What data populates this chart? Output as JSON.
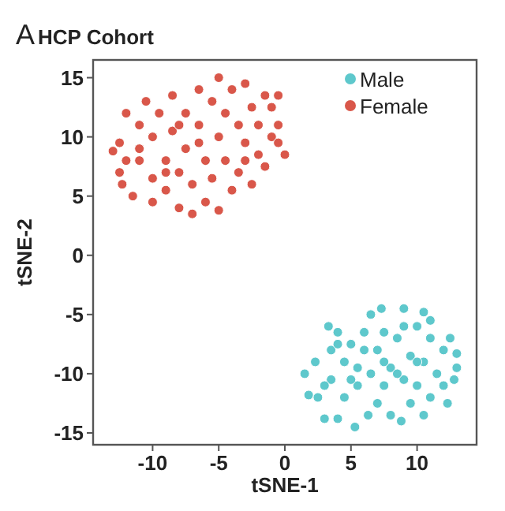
{
  "chart_data": {
    "type": "scatter",
    "title": "HCP Cohort",
    "annotations": [
      "A"
    ],
    "xlabel": "tSNE-1",
    "ylabel": "tSNE-2",
    "xlim": [
      -14.5,
      14.5
    ],
    "ylim": [
      -16,
      16.5
    ],
    "xticks": [
      -10,
      -5,
      0,
      5,
      10
    ],
    "yticks": [
      -15,
      -10,
      -5,
      0,
      5,
      10,
      15
    ],
    "grid": false,
    "legend": "top right",
    "marker": "circle",
    "series": [
      {
        "name": "Male",
        "color": "#5ec8cc",
        "x": [
          1.5,
          1.8,
          2.3,
          2.5,
          3,
          3.3,
          3.5,
          3.5,
          4,
          4,
          4.5,
          4.5,
          5,
          5.3,
          5.5,
          5.5,
          6,
          6.3,
          6.5,
          6.5,
          7,
          7,
          7.3,
          7.5,
          7.5,
          8,
          8,
          8.5,
          8.8,
          9,
          9,
          9.5,
          9.5,
          10,
          10,
          10.5,
          10.5,
          10.5,
          11,
          11,
          11.5,
          12,
          12,
          12.3,
          12.5,
          13,
          13,
          12.8,
          3,
          6,
          8.5,
          5,
          10,
          7.5,
          4,
          11,
          9
        ],
        "values": [
          -10,
          -11.8,
          -9,
          -12,
          -13.8,
          -6,
          -8,
          -10.5,
          -13.8,
          -6.5,
          -9,
          -12,
          -7.5,
          -14.5,
          -11,
          -9.5,
          -6.5,
          -13.5,
          -5,
          -10,
          -8,
          -12.5,
          -4.5,
          -6.5,
          -11,
          -9.5,
          -13.5,
          -7,
          -14,
          -4.5,
          -10.5,
          -8.5,
          -12.5,
          -6,
          -11,
          -4.8,
          -9,
          -13.5,
          -7,
          -12,
          -10,
          -8,
          -11,
          -12.5,
          -7,
          -9.5,
          -8.3,
          -10.5,
          -11,
          -8,
          -10,
          -10.5,
          -9,
          -9,
          -7.5,
          -5.5,
          -6
        ]
      },
      {
        "name": "Female",
        "color": "#d9574a",
        "x": [
          -13,
          -12.5,
          -12.5,
          -12.3,
          -12,
          -11.5,
          -11,
          -11,
          -10.5,
          -10,
          -10,
          -10,
          -9.5,
          -9,
          -9,
          -8.5,
          -8.5,
          -8,
          -8,
          -7.5,
          -7.5,
          -7,
          -7,
          -6.5,
          -6.5,
          -6,
          -6,
          -5.5,
          -5.5,
          -5,
          -5,
          -5,
          -4.5,
          -4.5,
          -4,
          -4,
          -3.5,
          -3.5,
          -3,
          -3,
          -2.5,
          -2.5,
          -2,
          -2,
          -1.5,
          -1.5,
          -1,
          -1,
          -0.5,
          -0.5,
          0,
          -0.5,
          -8,
          -11,
          -6.5,
          -3,
          -9,
          -12
        ],
        "values": [
          8.8,
          9.5,
          7,
          6,
          12,
          5,
          11,
          8,
          13,
          10,
          6.5,
          4.5,
          12,
          8,
          5.5,
          13.5,
          10.5,
          4,
          7,
          12,
          9,
          3.5,
          6,
          14,
          11,
          8,
          4.5,
          13,
          6.5,
          15,
          10,
          3.8,
          12,
          8,
          5.5,
          14,
          11,
          7,
          14.5,
          9.5,
          6,
          12.5,
          8.5,
          11,
          13.5,
          7.5,
          10,
          12.5,
          11,
          9.5,
          8.5,
          13.5,
          11,
          9,
          9.5,
          8,
          7,
          8
        ]
      }
    ]
  }
}
